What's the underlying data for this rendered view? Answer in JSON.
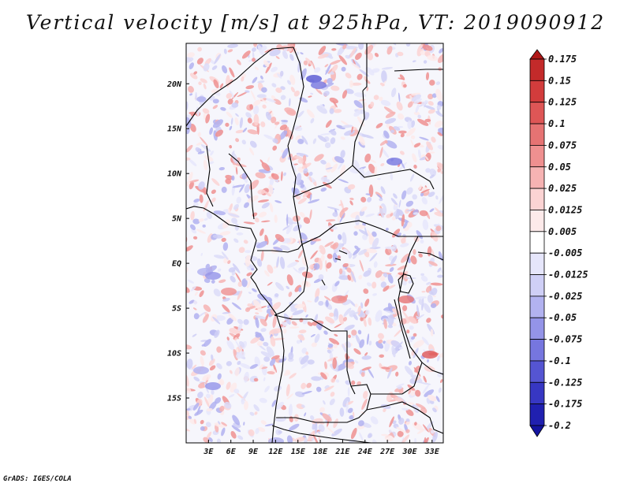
{
  "title": "Vertical velocity [m/s] at 925hPa, VT: 2019090912",
  "footer": "GrADS: IGES/COLA",
  "map": {
    "lat_labels": [
      "20N",
      "15N",
      "10N",
      "5N",
      "EQ",
      "5S",
      "10S",
      "15S"
    ],
    "lat_values": [
      20,
      15,
      10,
      5,
      0,
      -5,
      -10,
      -15
    ],
    "lon_labels": [
      "3E",
      "6E",
      "9E",
      "12E",
      "15E",
      "18E",
      "21E",
      "24E",
      "27E",
      "30E",
      "33E"
    ],
    "lon_values": [
      3,
      6,
      9,
      12,
      15,
      18,
      21,
      24,
      27,
      30,
      33
    ],
    "lat_range": [
      -20,
      24.5
    ],
    "lon_range": [
      0,
      34.5
    ]
  },
  "colorbar": {
    "labels": [
      "0.175",
      "0.15",
      "0.125",
      "0.1",
      "0.075",
      "0.05",
      "0.025",
      "0.0125",
      "0.005",
      "-0.005",
      "-0.0125",
      "-0.025",
      "-0.05",
      "-0.075",
      "-0.1",
      "-0.125",
      "-0.175",
      "-0.2"
    ],
    "colors": [
      "#b01818",
      "#c32a2a",
      "#d23c3c",
      "#de5656",
      "#e67373",
      "#ef9090",
      "#f6b3b3",
      "#fbd3d3",
      "#fdeaea",
      "#ffffff",
      "#e6e6fb",
      "#cfcff6",
      "#b2b2f0",
      "#9494e8",
      "#7676df",
      "#5555d2",
      "#3737c3",
      "#2020b0",
      "#1414a0"
    ]
  }
}
